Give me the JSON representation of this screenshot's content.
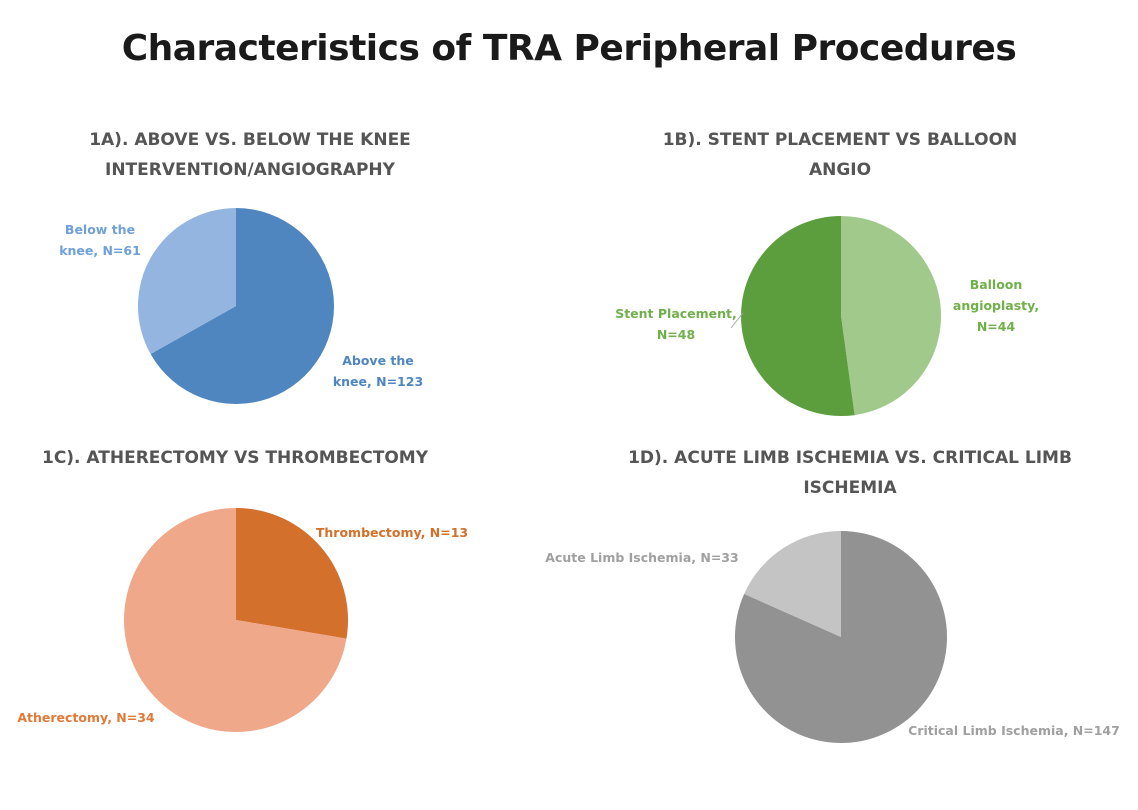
{
  "title": "Characteristics of TRA Peripheral Procedures",
  "chart_data": [
    {
      "type": "pie",
      "title": "1A). ABOVE VS. BELOW THE KNEE\nINTERVENTION/ANGIOGRAPHY",
      "slices": [
        {
          "label": "Above the knee, N=123",
          "label_lines": [
            "Above the",
            "knee, N=123"
          ],
          "value": 123,
          "color": "#4f86bf",
          "label_color": "#4f86bf"
        },
        {
          "label": "Below the knee, N=61",
          "label_lines": [
            "Below the",
            "knee, N=61"
          ],
          "value": 61,
          "color": "#93b5df",
          "label_color": "#6fa0d8"
        }
      ]
    },
    {
      "type": "pie",
      "title": "1B). STENT PLACEMENT VS BALLOON\nANGIO",
      "slices": [
        {
          "label": "Balloon angioplasty, N=44",
          "label_lines": [
            "Balloon",
            "angioplasty,",
            "N=44"
          ],
          "value": 44,
          "color": "#a1c98b",
          "label_color": "#6fb04a"
        },
        {
          "label": "Stent Placement, N=48",
          "label_lines": [
            "Stent Placement,",
            "N=48"
          ],
          "value": 48,
          "color": "#5c9d3e",
          "label_color": "#6fb04a"
        }
      ]
    },
    {
      "type": "pie",
      "title": "1C). ATHERECTOMY VS THROMBECTOMY",
      "slices": [
        {
          "label": "Thrombectomy, N=13",
          "label_lines": [
            "Thrombectomy, N=13"
          ],
          "value": 13,
          "color": "#d2702c",
          "label_color": "#d2702c"
        },
        {
          "label": "Atherectomy, N=34",
          "label_lines": [
            "Atherectomy, N=34"
          ],
          "value": 34,
          "color": "#f0a88a",
          "label_color": "#e07a3a"
        }
      ]
    },
    {
      "type": "pie",
      "title": "1D). ACUTE LIMB ISCHEMIA VS. CRITICAL LIMB\nISCHEMIA",
      "slices": [
        {
          "label": "Critical Limb Ischemia, N=147",
          "label_lines": [
            "Critical Limb Ischemia, N=147"
          ],
          "value": 147,
          "color": "#929292",
          "label_color": "#a0a0a0"
        },
        {
          "label": "Acute Limb Ischemia, N=33",
          "label_lines": [
            "Acute Limb Ischemia, N=33"
          ],
          "value": 33,
          "color": "#c4c4c4",
          "label_color": "#a0a0a0"
        }
      ]
    }
  ]
}
